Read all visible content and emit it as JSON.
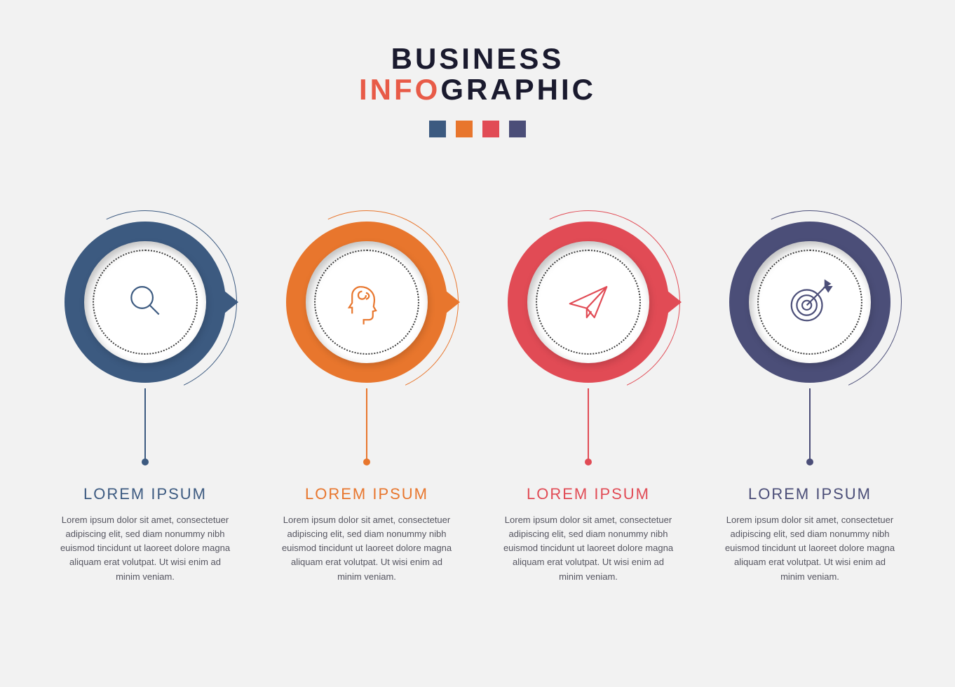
{
  "background_color": "#f2f2f2",
  "title": {
    "line1": "BUSINESS",
    "line2_accent": "INFO",
    "line2_rest": "GRAPHIC",
    "line1_color": "#1a1a2e",
    "accent_color": "#e85b48",
    "rest_color": "#1a1a2e",
    "font_size": 42,
    "letter_spacing": 4
  },
  "swatches": [
    "#3c5a80",
    "#e8762d",
    "#e14b55",
    "#4b4e78"
  ],
  "swatch_size": 24,
  "steps": [
    {
      "color": "#3c5a80",
      "icon": "magnifier-icon",
      "heading": "LOREM IPSUM",
      "body": "Lorem ipsum dolor sit amet, consectetuer adipiscing elit, sed diam nonummy nibh euismod tincidunt ut laoreet dolore magna aliquam erat volutpat. Ut wisi enim ad minim veniam.",
      "show_pointer": true
    },
    {
      "color": "#e8762d",
      "icon": "head-brain-icon",
      "heading": "LOREM IPSUM",
      "body": "Lorem ipsum dolor sit amet, consectetuer adipiscing elit, sed diam nonummy nibh euismod tincidunt ut laoreet dolore magna aliquam erat volutpat. Ut wisi enim ad minim veniam.",
      "show_pointer": true
    },
    {
      "color": "#e14b55",
      "icon": "paper-plane-icon",
      "heading": "LOREM IPSUM",
      "body": "Lorem ipsum dolor sit amet, consectetuer adipiscing elit, sed diam nonummy nibh euismod tincidunt ut laoreet dolore magna aliquam erat volutpat. Ut wisi enim ad minim veniam.",
      "show_pointer": true
    },
    {
      "color": "#4b4e78",
      "icon": "target-arrow-icon",
      "heading": "LOREM IPSUM",
      "body": "Lorem ipsum dolor sit amet, consectetuer adipiscing elit, sed diam nonummy nibh euismod tincidunt ut laoreet dolore magna aliquam erat volutpat. Ut wisi enim ad minim veniam.",
      "show_pointer": false
    }
  ],
  "inner_circle_color": "#ffffff",
  "dotted_border_color": "#3a3a3a",
  "body_text_color": "#555560",
  "heading_font_size": 22,
  "body_font_size": 13,
  "icons": {
    "magnifier-icon": "<svg viewBox='0 0 64 64' fill='none' stroke='COLOR' stroke-width='2'><circle cx='28' cy='26' r='14'/><line x1='38' y1='36' x2='50' y2='48'/></svg>",
    "head-brain-icon": "<svg viewBox='0 0 64 64' fill='none' stroke='COLOR' stroke-width='2'><path d='M24 12c10 0 18 7 18 17 0 4-1 7-1 9l3 5-4 1v6c0 3-2 5-5 5h-7v6' /><path d='M24 12c-6 0-11 5-11 11v10l-4 6h4v8'/><path d='M26 18c-3 0-5 2-5 5s2 5 5 5 5-2 5-5' /><path d='M31 20c2 0 4 2 4 4s-2 4-4 4'/></svg>",
    "paper-plane-icon": "<svg viewBox='0 0 64 64' fill='none' stroke='COLOR' stroke-width='2' stroke-linejoin='round'><path d='M8 34 L56 12 L40 52 L30 40 Z'/><path d='M30 40 L56 12'/><path d='M30 40 L30 52 L36 44'/></svg>",
    "target-arrow-icon": "<svg viewBox='0 0 64 64' fill='none' stroke='COLOR' stroke-width='2'><circle cx='28' cy='36' r='20'/><circle cx='28' cy='36' r='13'/><circle cx='28' cy='36' r='6'/><line x1='28' y1='36' x2='52' y2='12'/><path d='M52 12 l8 0 l-4 6 l-4 -6 l0 -8 l6 4 z' fill='COLOR'/></svg>"
  }
}
